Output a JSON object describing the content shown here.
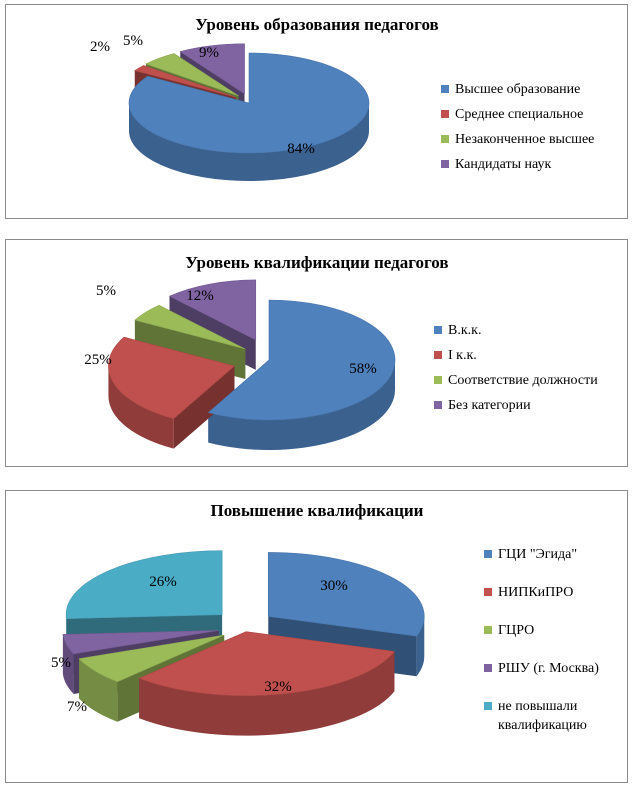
{
  "colors": {
    "blue": "#4f81bd",
    "red": "#c0504d",
    "green": "#9bbb59",
    "purple": "#8064a2",
    "teal": "#4bacc6"
  },
  "chart_data": [
    {
      "type": "pie",
      "title": "Уровень образования педагогов",
      "legend_position": "right",
      "categories": [
        "Высшее образование",
        "Среднее специальное",
        "Незаконченное высшее",
        "Кандидаты наук"
      ],
      "values": [
        84,
        2,
        5,
        9
      ],
      "labels": [
        "84%",
        "2%",
        "5%",
        "9%"
      ],
      "colors": [
        "blue",
        "red",
        "green",
        "purple"
      ]
    },
    {
      "type": "pie",
      "title": "Уровень квалификации педагогов",
      "legend_position": "right",
      "categories": [
        "В.к.к.",
        "I к.к.",
        "Соответствие должности",
        "Без категории"
      ],
      "values": [
        58,
        25,
        5,
        12
      ],
      "labels": [
        "58%",
        "25%",
        "5%",
        "12%"
      ],
      "colors": [
        "blue",
        "red",
        "green",
        "purple"
      ]
    },
    {
      "type": "pie",
      "title": "Повышение квалификации",
      "legend_position": "right",
      "categories": [
        "ГЦИ \"Эгида\"",
        "НИПКиПРО",
        "ГЦРО",
        "РШУ (г. Москва)",
        "не повышали квалификацию"
      ],
      "legend_lines": [
        [
          "ГЦИ \"Эгида\""
        ],
        [
          "НИПКиПРО"
        ],
        [
          "ГЦРО"
        ],
        [
          "РШУ (г. Москва)"
        ],
        [
          "не повышали",
          "квалификацию"
        ]
      ],
      "values": [
        30,
        32,
        7,
        5,
        26
      ],
      "labels": [
        "30%",
        "32%",
        "7%",
        "5%",
        "26%"
      ],
      "colors": [
        "blue",
        "red",
        "green",
        "purple",
        "teal"
      ]
    }
  ]
}
